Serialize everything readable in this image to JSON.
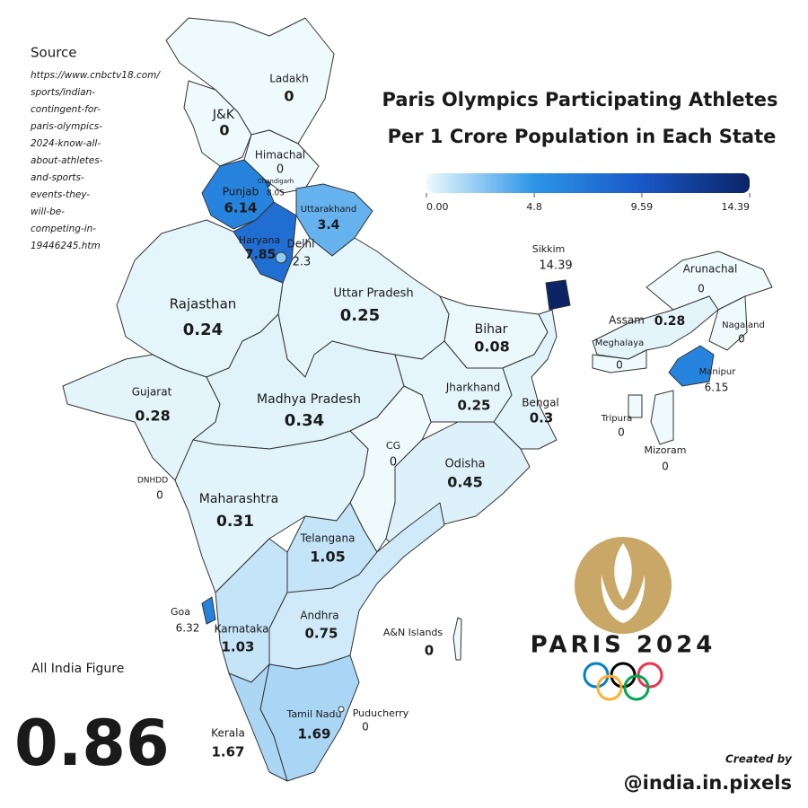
{
  "title": [
    "Paris Olympics Participating Athletes",
    "Per 1 Crore Population in Each State"
  ],
  "colorbar": {
    "range": [
      0,
      14.39
    ],
    "ticks": [
      {
        "value": 0,
        "label": "0.00"
      },
      4.8,
      9.59,
      14.39
    ],
    "colors": [
      "#eefafc",
      "#2c95e8",
      "#1a57c6",
      "#0a2466"
    ]
  },
  "source": {
    "heading": "Source",
    "lines": [
      "https://www.cnbctv18.com/",
      "sports/indian-",
      "contingent-for-",
      "paris-olympics-",
      "2024-know-all-",
      "about-athletes-",
      "and-sports-",
      "events-they-",
      "will-be-",
      "competing-in-",
      "19446245.htm"
    ]
  },
  "regions": [
    {
      "name": "Ladakh",
      "value": 0
    },
    {
      "name": "J&K",
      "value": 0
    },
    {
      "name": "Himachal",
      "value": 0
    },
    {
      "name": "Chandigarh",
      "value": 8.05
    },
    {
      "name": "Punjab",
      "value": 6.14
    },
    {
      "name": "Haryana",
      "value": 7.85
    },
    {
      "name": "Uttarakhand",
      "value": 3.4
    },
    {
      "name": "Delhi",
      "value": 2.3
    },
    {
      "name": "Rajasthan",
      "value": 0.24
    },
    {
      "name": "Uttar Pradesh",
      "value": 0.25
    },
    {
      "name": "Gujarat",
      "value": 0.28
    },
    {
      "name": "Madhya Pradesh",
      "value": 0.34
    },
    {
      "name": "Bihar",
      "value": 0.08
    },
    {
      "name": "Jharkhand",
      "value": 0.25
    },
    {
      "name": "Bengal",
      "value": 0.3
    },
    {
      "name": "CG",
      "value": 0
    },
    {
      "name": "Odisha",
      "value": 0.45
    },
    {
      "name": "DNHDD",
      "value": 0
    },
    {
      "name": "Maharashtra",
      "value": 0.31
    },
    {
      "name": "Telangana",
      "value": 1.05
    },
    {
      "name": "Goa",
      "value": 6.32
    },
    {
      "name": "Karnataka",
      "value": 1.03
    },
    {
      "name": "Andhra",
      "value": 0.75
    },
    {
      "name": "A&N Islands",
      "value": 0
    },
    {
      "name": "Tamil Nadu",
      "value": 1.69
    },
    {
      "name": "Kerala",
      "value": 1.67
    },
    {
      "name": "Puducherry",
      "value": 0
    },
    {
      "name": "Sikkim",
      "value": 14.39
    },
    {
      "name": "Arunachal",
      "value": 0
    },
    {
      "name": "Assam",
      "value": 0.28
    },
    {
      "name": "Meghalaya",
      "value": 0
    },
    {
      "name": "Nagaland",
      "value": 0
    },
    {
      "name": "Manipur",
      "value": 6.15
    },
    {
      "name": "Tripura",
      "value": 0
    },
    {
      "name": "Mizoram",
      "value": 0
    }
  ],
  "all_india": {
    "label": "All India Figure",
    "value": 0.86
  },
  "logo": {
    "text": "PARIS 2024"
  },
  "credit": {
    "label": "Created by",
    "handle": "@india.in.pixels"
  }
}
